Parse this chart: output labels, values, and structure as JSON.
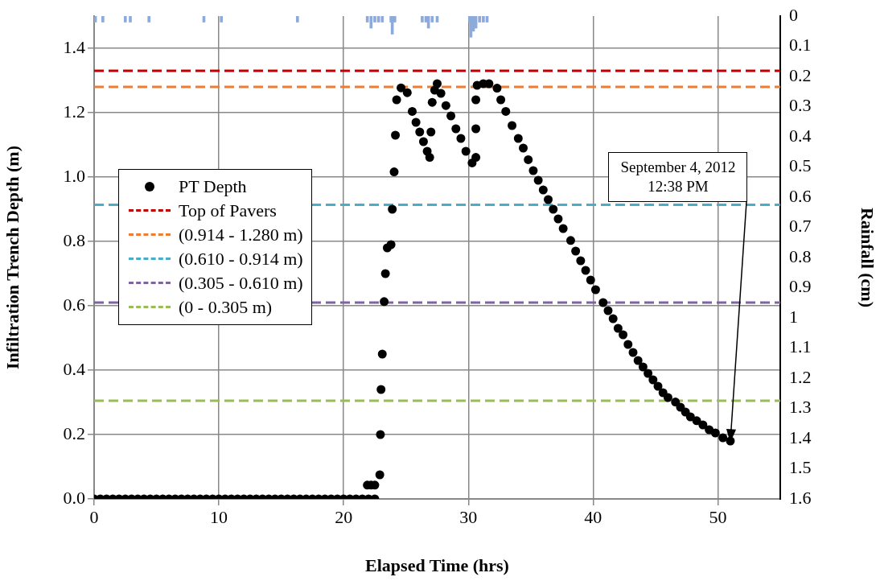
{
  "chart_data": {
    "type": "scatter",
    "xlabel": "Elapsed Time (hrs)",
    "ylabel": "Infiltration Trench Depth (m)",
    "y2label": "Rainfall (cm)",
    "xlim": [
      0,
      55
    ],
    "xticks": [
      0,
      10,
      20,
      30,
      40,
      50
    ],
    "ylim": [
      0,
      1.5
    ],
    "yticks": [
      {
        "value": 0,
        "label": "0.0"
      },
      {
        "value": 0.2,
        "label": "0.2"
      },
      {
        "value": 0.4,
        "label": "0.4"
      },
      {
        "value": 0.6,
        "label": "0.6"
      },
      {
        "value": 0.8,
        "label": "0.8"
      },
      {
        "value": 1,
        "label": "1.0"
      },
      {
        "value": 1.2,
        "label": "1.2"
      },
      {
        "value": 1.4,
        "label": "1.4"
      }
    ],
    "y2lim": [
      1.6,
      0
    ],
    "y2ticks": [
      0,
      0.1,
      0.2,
      0.3,
      0.4,
      0.5,
      0.6,
      0.7,
      0.8,
      0.9,
      1,
      1.1,
      1.2,
      1.3,
      1.4,
      1.5,
      1.6
    ],
    "grid": true,
    "legend": "left",
    "marker": "circle",
    "series": [
      {
        "name": "PT Depth",
        "color": "#000000",
        "x": [
          0,
          0.5,
          1,
          1.5,
          2,
          2.5,
          3,
          3.5,
          4,
          4.5,
          5,
          5.5,
          6,
          6.5,
          7,
          7.5,
          8,
          8.5,
          9,
          9.5,
          10,
          10.5,
          11,
          11.5,
          12,
          12.5,
          13,
          13.5,
          14,
          14.5,
          15,
          15.5,
          16,
          16.5,
          17,
          17.5,
          18,
          18.5,
          19,
          19.5,
          20,
          20.5,
          21,
          21.5,
          22,
          22.5,
          21.9,
          22.2,
          22.5,
          22.9,
          22.95,
          23.0,
          23.1,
          23.25,
          23.35,
          23.5,
          23.8,
          23.9,
          24.05,
          24.15,
          24.25,
          24.6,
          25.1,
          25.5,
          25.8,
          26.1,
          26.4,
          26.7,
          26.9,
          27.0,
          27.1,
          27.3,
          27.5,
          27.8,
          28.2,
          28.6,
          29.0,
          29.4,
          29.8,
          30.3,
          30.6,
          30.6,
          30.6,
          30.7,
          31.2,
          31.65,
          32.3,
          32.6,
          33.0,
          33.5,
          34.0,
          34.4,
          34.8,
          35.2,
          35.6,
          36.0,
          36.4,
          36.8,
          37.2,
          37.6,
          38.2,
          38.6,
          39.0,
          39.4,
          39.8,
          40.2,
          40.8,
          41.2,
          41.6,
          42.0,
          42.4,
          42.8,
          43.2,
          43.6,
          44.0,
          44.4,
          44.8,
          45.2,
          45.6,
          46.0,
          46.6,
          47.0,
          47.4,
          47.8,
          48.3,
          48.8,
          49.3,
          49.8,
          50.4,
          51.0
        ],
        "values": [
          0,
          0,
          0,
          0,
          0,
          0,
          0,
          0,
          0,
          0,
          0,
          0,
          0,
          0,
          0,
          0,
          0,
          0,
          0,
          0,
          0,
          0,
          0,
          0,
          0,
          0,
          0,
          0,
          0,
          0,
          0,
          0,
          0,
          0,
          0,
          0,
          0,
          0,
          0,
          0,
          0,
          0,
          0,
          0,
          0,
          0,
          0.043,
          0.043,
          0.043,
          0.075,
          0.2,
          0.34,
          0.45,
          0.613,
          0.7,
          0.78,
          0.79,
          0.9,
          1.016,
          1.13,
          1.24,
          1.277,
          1.262,
          1.204,
          1.17,
          1.14,
          1.11,
          1.08,
          1.061,
          1.14,
          1.232,
          1.27,
          1.29,
          1.26,
          1.222,
          1.19,
          1.15,
          1.12,
          1.08,
          1.044,
          1.061,
          1.15,
          1.24,
          1.285,
          1.29,
          1.29,
          1.276,
          1.24,
          1.204,
          1.16,
          1.12,
          1.09,
          1.054,
          1.02,
          0.99,
          0.96,
          0.93,
          0.9,
          0.87,
          0.84,
          0.803,
          0.77,
          0.74,
          0.71,
          0.68,
          0.65,
          0.61,
          0.585,
          0.56,
          0.53,
          0.51,
          0.48,
          0.455,
          0.43,
          0.41,
          0.39,
          0.37,
          0.35,
          0.33,
          0.315,
          0.301,
          0.285,
          0.27,
          0.255,
          0.243,
          0.23,
          0.215,
          0.205,
          0.19,
          0.18
        ]
      },
      {
        "name": "Top of Pavers",
        "type": "line",
        "color": "#c00000",
        "line_style": "dashed",
        "marker": "none",
        "x": [
          0,
          55
        ],
        "values": [
          1.33,
          1.33
        ]
      },
      {
        "name": "(0.914 - 1.280 m)",
        "type": "line",
        "color": "#ed7d31",
        "line_style": "dashed",
        "marker": "none",
        "x": [
          0,
          55
        ],
        "values": [
          1.28,
          1.28
        ]
      },
      {
        "name": "(0.610 - 0.914 m)",
        "type": "line",
        "color": "#4bacc6",
        "line_style": "dashed",
        "marker": "none",
        "x": [
          0,
          55
        ],
        "values": [
          0.914,
          0.914
        ]
      },
      {
        "name": "(0.305 - 0.610 m)",
        "type": "line",
        "color": "#8064a2",
        "line_style": "dashed",
        "marker": "none",
        "x": [
          0,
          55
        ],
        "values": [
          0.61,
          0.61
        ]
      },
      {
        "name": "(0 - 0.305 m)",
        "type": "line",
        "color": "#9bbb59",
        "line_style": "dashed",
        "marker": "none",
        "x": [
          0,
          55
        ],
        "values": [
          0.305,
          0.305
        ]
      },
      {
        "type": "bar",
        "axis": "y2",
        "color": "#8eaadb",
        "x": [
          0.1,
          0.7,
          2.5,
          2.9,
          4.4,
          8.8,
          10.2,
          16.3,
          21.9,
          22.2,
          22.5,
          22.8,
          23.1,
          23.8,
          23.9,
          24.1,
          26.3,
          26.6,
          26.8,
          27.1,
          27.5,
          30.1,
          30.2,
          30.4,
          30.6,
          30.9,
          31.2,
          31.5
        ],
        "values": [
          0.02,
          0.02,
          0.02,
          0.02,
          0.02,
          0.02,
          0.02,
          0.02,
          0.02,
          0.04,
          0.02,
          0.02,
          0.02,
          0.02,
          0.06,
          0.02,
          0.02,
          0.02,
          0.04,
          0.02,
          0.02,
          0.02,
          0.07,
          0.05,
          0.04,
          0.02,
          0.02,
          0.02
        ]
      }
    ],
    "annotations": [
      "September 4, 2012\n12:38 PM"
    ]
  }
}
